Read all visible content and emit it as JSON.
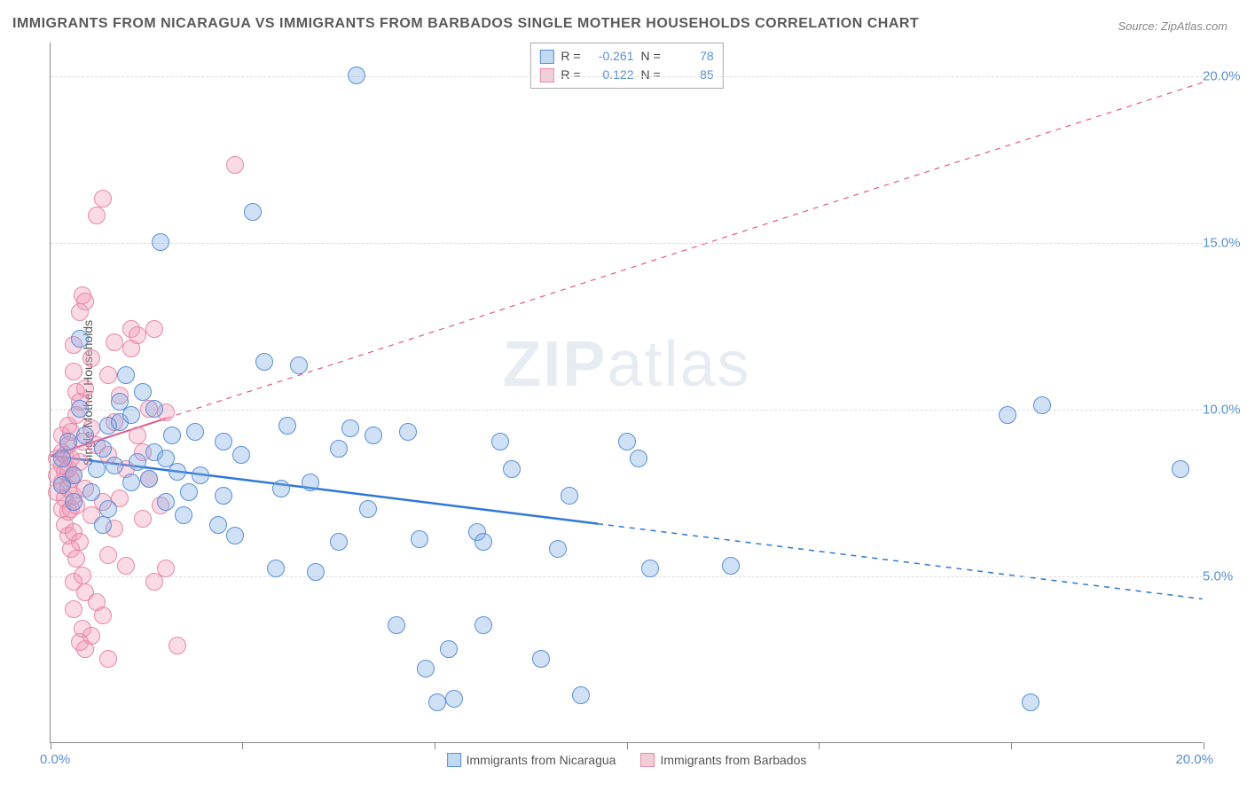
{
  "title": "IMMIGRANTS FROM NICARAGUA VS IMMIGRANTS FROM BARBADOS SINGLE MOTHER HOUSEHOLDS CORRELATION CHART",
  "source": "Source: ZipAtlas.com",
  "watermark_a": "ZIP",
  "watermark_b": "atlas",
  "ylabel": "Single Mother Households",
  "chart": {
    "type": "scatter",
    "background_color": "#ffffff",
    "grid_color": "#dcdcdc",
    "xlim": [
      0,
      20
    ],
    "ylim": [
      0,
      21
    ],
    "xtick_positions": [
      0,
      3.33,
      6.66,
      10,
      13.33,
      16.66,
      20
    ],
    "xtick_labels": {
      "left": "0.0%",
      "right": "20.0%"
    },
    "ytick_positions": [
      5,
      10,
      15,
      20
    ],
    "ytick_labels": [
      "5.0%",
      "10.0%",
      "15.0%",
      "20.0%"
    ],
    "marker_radius": 10,
    "marker_border_width": 1.2,
    "series": [
      {
        "name": "Immigrants from Nicaragua",
        "fill": "rgba(120,170,230,0.35)",
        "stroke": "#5a8fd6",
        "swatch_fill": "#c2d9f2",
        "swatch_border": "#5a8fd6",
        "stats": {
          "R": "-0.261",
          "N": "78"
        },
        "trend": {
          "x1": 0,
          "y1": 8.6,
          "x2": 20,
          "y2": 4.3,
          "solid_until_x": 9.5,
          "color": "#2f78d6",
          "width": 2.5
        },
        "points": [
          [
            0.2,
            7.7
          ],
          [
            0.2,
            8.5
          ],
          [
            0.3,
            9.0
          ],
          [
            0.4,
            7.2
          ],
          [
            0.4,
            8.0
          ],
          [
            0.5,
            10.0
          ],
          [
            0.5,
            12.1
          ],
          [
            0.6,
            9.2
          ],
          [
            0.7,
            7.5
          ],
          [
            0.8,
            8.2
          ],
          [
            0.9,
            8.8
          ],
          [
            0.9,
            6.5
          ],
          [
            1.0,
            7.0
          ],
          [
            1.0,
            9.5
          ],
          [
            1.1,
            8.3
          ],
          [
            1.2,
            10.2
          ],
          [
            1.2,
            9.6
          ],
          [
            1.3,
            11.0
          ],
          [
            1.4,
            7.8
          ],
          [
            1.4,
            9.8
          ],
          [
            1.5,
            8.4
          ],
          [
            1.6,
            10.5
          ],
          [
            1.7,
            7.9
          ],
          [
            1.8,
            8.7
          ],
          [
            1.8,
            10.0
          ],
          [
            1.9,
            15.0
          ],
          [
            2.0,
            8.5
          ],
          [
            2.0,
            7.2
          ],
          [
            2.1,
            9.2
          ],
          [
            2.2,
            8.1
          ],
          [
            2.3,
            6.8
          ],
          [
            2.4,
            7.5
          ],
          [
            2.5,
            9.3
          ],
          [
            2.6,
            8.0
          ],
          [
            2.9,
            6.5
          ],
          [
            3.0,
            7.4
          ],
          [
            3.0,
            9.0
          ],
          [
            3.2,
            6.2
          ],
          [
            3.3,
            8.6
          ],
          [
            3.5,
            15.9
          ],
          [
            3.7,
            11.4
          ],
          [
            3.9,
            5.2
          ],
          [
            4.0,
            7.6
          ],
          [
            4.1,
            9.5
          ],
          [
            4.3,
            11.3
          ],
          [
            4.5,
            7.8
          ],
          [
            4.6,
            5.1
          ],
          [
            5.0,
            8.8
          ],
          [
            5.0,
            6.0
          ],
          [
            5.2,
            9.4
          ],
          [
            5.3,
            20.0
          ],
          [
            5.5,
            7.0
          ],
          [
            5.6,
            9.2
          ],
          [
            6.0,
            3.5
          ],
          [
            6.2,
            9.3
          ],
          [
            6.4,
            6.1
          ],
          [
            6.5,
            2.2
          ],
          [
            6.7,
            1.2
          ],
          [
            6.9,
            2.8
          ],
          [
            7.0,
            1.3
          ],
          [
            7.4,
            6.3
          ],
          [
            7.5,
            3.5
          ],
          [
            7.5,
            6.0
          ],
          [
            7.8,
            9.0
          ],
          [
            8.0,
            8.2
          ],
          [
            8.5,
            2.5
          ],
          [
            8.8,
            5.8
          ],
          [
            9.0,
            7.4
          ],
          [
            9.2,
            1.4
          ],
          [
            10.0,
            9.0
          ],
          [
            10.2,
            8.5
          ],
          [
            10.4,
            5.2
          ],
          [
            11.8,
            5.3
          ],
          [
            16.6,
            9.8
          ],
          [
            17.2,
            10.1
          ],
          [
            17.0,
            1.2
          ],
          [
            19.6,
            8.2
          ]
        ]
      },
      {
        "name": "Immigrants from Barbados",
        "fill": "rgba(240,150,180,0.35)",
        "stroke": "#e589a8",
        "swatch_fill": "#f5cdd9",
        "swatch_border": "#e589a8",
        "stats": {
          "R": "0.122",
          "N": "85"
        },
        "trend": {
          "x1": 0,
          "y1": 8.6,
          "x2": 20,
          "y2": 19.8,
          "solid_until_x": 2.0,
          "color": "#e05a8a",
          "width": 2
        },
        "points": [
          [
            0.1,
            7.5
          ],
          [
            0.1,
            8.0
          ],
          [
            0.1,
            8.5
          ],
          [
            0.2,
            7.0
          ],
          [
            0.2,
            7.8
          ],
          [
            0.2,
            8.3
          ],
          [
            0.2,
            8.7
          ],
          [
            0.2,
            9.2
          ],
          [
            0.25,
            6.5
          ],
          [
            0.25,
            7.3
          ],
          [
            0.25,
            8.1
          ],
          [
            0.25,
            8.6
          ],
          [
            0.3,
            6.2
          ],
          [
            0.3,
            6.9
          ],
          [
            0.3,
            7.6
          ],
          [
            0.3,
            8.2
          ],
          [
            0.3,
            8.9
          ],
          [
            0.3,
            9.5
          ],
          [
            0.35,
            5.8
          ],
          [
            0.35,
            7.0
          ],
          [
            0.35,
            7.9
          ],
          [
            0.35,
            8.5
          ],
          [
            0.35,
            9.3
          ],
          [
            0.4,
            4.0
          ],
          [
            0.4,
            4.8
          ],
          [
            0.4,
            6.3
          ],
          [
            0.4,
            7.4
          ],
          [
            0.4,
            8.0
          ],
          [
            0.4,
            11.1
          ],
          [
            0.4,
            11.9
          ],
          [
            0.45,
            5.5
          ],
          [
            0.45,
            7.1
          ],
          [
            0.45,
            9.8
          ],
          [
            0.45,
            10.5
          ],
          [
            0.5,
            3.0
          ],
          [
            0.5,
            6.0
          ],
          [
            0.5,
            8.4
          ],
          [
            0.5,
            10.2
          ],
          [
            0.5,
            12.9
          ],
          [
            0.55,
            3.4
          ],
          [
            0.55,
            5.0
          ],
          [
            0.55,
            9.0
          ],
          [
            0.55,
            13.4
          ],
          [
            0.6,
            2.8
          ],
          [
            0.6,
            4.5
          ],
          [
            0.6,
            7.6
          ],
          [
            0.6,
            10.6
          ],
          [
            0.6,
            13.2
          ],
          [
            0.7,
            3.2
          ],
          [
            0.7,
            6.8
          ],
          [
            0.7,
            9.4
          ],
          [
            0.7,
            11.5
          ],
          [
            0.8,
            4.2
          ],
          [
            0.8,
            8.9
          ],
          [
            0.8,
            15.8
          ],
          [
            0.9,
            3.8
          ],
          [
            0.9,
            7.2
          ],
          [
            0.9,
            16.3
          ],
          [
            1.0,
            2.5
          ],
          [
            1.0,
            5.6
          ],
          [
            1.0,
            8.6
          ],
          [
            1.0,
            11.0
          ],
          [
            1.1,
            6.4
          ],
          [
            1.1,
            9.6
          ],
          [
            1.1,
            12.0
          ],
          [
            1.2,
            7.3
          ],
          [
            1.2,
            10.4
          ],
          [
            1.3,
            5.3
          ],
          [
            1.3,
            8.2
          ],
          [
            1.4,
            11.8
          ],
          [
            1.4,
            12.4
          ],
          [
            1.5,
            9.2
          ],
          [
            1.5,
            12.2
          ],
          [
            1.6,
            6.7
          ],
          [
            1.6,
            8.7
          ],
          [
            1.7,
            7.9
          ],
          [
            1.7,
            10.0
          ],
          [
            1.8,
            4.8
          ],
          [
            1.8,
            12.4
          ],
          [
            1.9,
            7.1
          ],
          [
            2.0,
            5.2
          ],
          [
            2.0,
            9.9
          ],
          [
            2.2,
            2.9
          ],
          [
            3.2,
            17.3
          ]
        ]
      }
    ]
  },
  "legend": {
    "r_label": "R =",
    "n_label": "N ="
  }
}
